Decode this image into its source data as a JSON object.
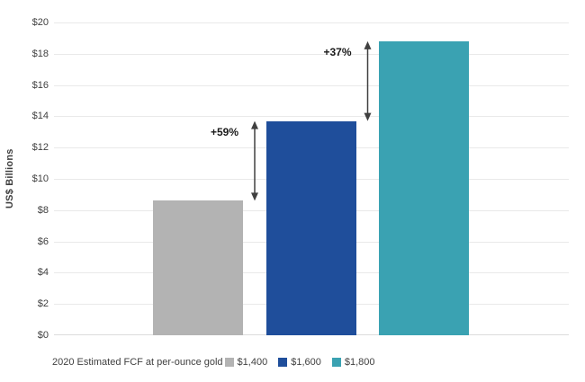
{
  "chart_data": {
    "type": "bar",
    "title": "",
    "xlabel": "",
    "ylabel": "US$ Billions",
    "categories": [
      "$1,400",
      "$1,600",
      "$1,800"
    ],
    "values": [
      8.6,
      13.7,
      18.8
    ],
    "ylim": [
      0,
      20
    ],
    "ytick_step": 2,
    "ytick_prefix": "$",
    "grid": true,
    "legend_position": "bottom",
    "legend_prefix": "2020 Estimated FCF at per-ounce gold",
    "series_colors": [
      "#b3b3b3",
      "#1f4e9b",
      "#3aa2b2"
    ],
    "annotations": [
      {
        "label": "+59%",
        "from_value": 8.6,
        "to_value": 13.7,
        "between": [
          0,
          1
        ]
      },
      {
        "label": "+37%",
        "from_value": 13.7,
        "to_value": 18.8,
        "between": [
          1,
          2
        ]
      }
    ]
  },
  "colors": {
    "background": "#ffffff",
    "gridline": "#e9e9e9",
    "axis_line": "#dcdcdc",
    "tick_text": "#404040",
    "annotation_text": "#1a1a1a",
    "arrow": "#404040"
  }
}
